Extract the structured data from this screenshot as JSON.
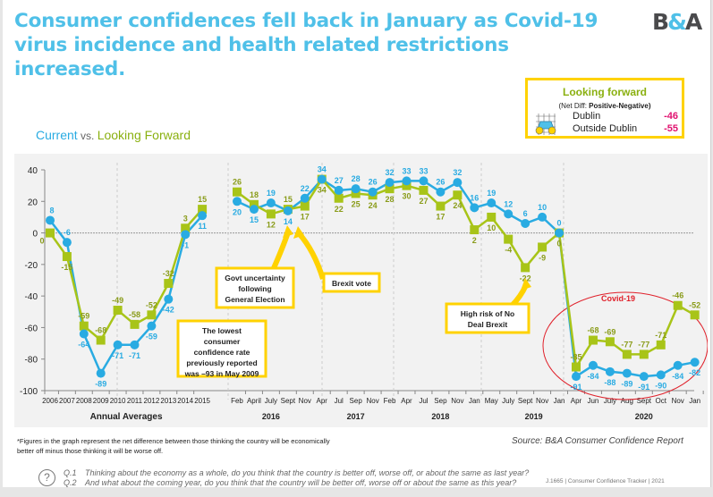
{
  "header": {
    "title_line1": "Consumer confidences fell back in January as Covid-19",
    "title_line2": "virus incidence and health related restrictions increased.",
    "logo_left": "B",
    "logo_amp": "&",
    "logo_right": "A"
  },
  "subtitle": {
    "current": "Current",
    "vs": " vs. ",
    "forward": "Looking Forward"
  },
  "looking_forward_box": {
    "title": "Looking forward",
    "subtitle_plain": "(Net Diff: ",
    "subtitle_bold": "Positive-Negative)",
    "rows": [
      {
        "label": "Dublin",
        "value": "-46"
      },
      {
        "label": "Outside Dublin",
        "value": "-55"
      }
    ],
    "icon": "binoculars-icon"
  },
  "colors": {
    "current": "#29abe2",
    "forward": "#a8c418",
    "forward_label": "#8a9c1a",
    "annotation_border": "#ffd200",
    "covid_circle": "#e0202a",
    "title": "#4fc0e8"
  },
  "chart_data": {
    "type": "line",
    "title": "Current vs. Looking Forward",
    "ylim": [
      -100,
      40
    ],
    "yticks": [
      40,
      20,
      0,
      -20,
      -40,
      -60,
      -80,
      -100
    ],
    "grid": false,
    "categories": [
      "2006",
      "2007",
      "2008",
      "2009",
      "2010",
      "2011",
      "2012",
      "2013",
      "2014",
      "2015",
      "Feb",
      "April",
      "July",
      "Sept",
      "Nov",
      "Apr",
      "Jul",
      "Sep",
      "Nov",
      "Feb",
      "Apr",
      "Jul",
      "Sep",
      "Nov",
      "Jan",
      "May",
      "July",
      "Sept",
      "Nov",
      "Jan",
      "Apr",
      "Jun",
      "July",
      "Aug",
      "Sept",
      "Oct",
      "Nov",
      "Jan"
    ],
    "group_labels": [
      {
        "label": "Annual Averages",
        "from": 0,
        "to": 9
      },
      {
        "label": "2016",
        "from": 10,
        "to": 14
      },
      {
        "label": "2017",
        "from": 15,
        "to": 19
      },
      {
        "label": "2018",
        "from": 20,
        "to": 24
      },
      {
        "label": "2019",
        "from": 25,
        "to": 30
      },
      {
        "label": "2020",
        "from": 31,
        "to": 37
      }
    ],
    "series": [
      {
        "name": "Current",
        "marker": "circle",
        "values": [
          8,
          -6,
          -64,
          -89,
          -71,
          -71,
          -59,
          -42,
          -1,
          11,
          20,
          15,
          19,
          14,
          22,
          34,
          27,
          28,
          26,
          32,
          33,
          33,
          26,
          32,
          16,
          19,
          12,
          6,
          10,
          0,
          -91,
          -84,
          -88,
          -89,
          -91,
          -90,
          -84,
          -82
        ]
      },
      {
        "name": "Looking Forward",
        "marker": "square",
        "values": [
          0,
          -15,
          -59,
          -68,
          -49,
          -58,
          -52,
          -32,
          3,
          15,
          26,
          18,
          12,
          15,
          17,
          34,
          22,
          25,
          24,
          28,
          30,
          27,
          17,
          24,
          2,
          10,
          -4,
          -22,
          -9,
          0,
          -85,
          -68,
          -69,
          -77,
          -77,
          -71,
          -46,
          -52
        ]
      }
    ],
    "annotations": [
      {
        "text": [
          "Govt uncertainty",
          "following",
          "General Election"
        ],
        "points_to": "July 2016"
      },
      {
        "text": [
          "Brexit vote"
        ],
        "points_to": "Sept 2016"
      },
      {
        "text": [
          "The  lowest",
          "consumer",
          "confidence rate",
          "previously reported",
          "was –93 in May 2009"
        ]
      },
      {
        "text": [
          "High risk of No",
          "Deal Brexit"
        ],
        "points_to": "Sept 2018"
      },
      {
        "text": [
          "Covid-19"
        ],
        "encircles": "2020"
      }
    ]
  },
  "footer": {
    "footnote_line1": "*Figures in the graph represent the net difference between those thinking the country will be economically",
    "footnote_line2": "better off minus those thinking it will be worse off.",
    "source": "Source: B&A Consumer Confidence Report",
    "q1_num": "Q.1",
    "q1_text": "Thinking about the economy as a whole, do you think that the country is better off, worse off, or about the same as last year?",
    "q2_num": "Q.2",
    "q2_text": "And what about the coming year, do you think that the country will be better off, worse off or about the same as this year?",
    "tracker": "J.1665  |  Consumer Confidence Tracker  |  2021",
    "help_icon": "?"
  }
}
